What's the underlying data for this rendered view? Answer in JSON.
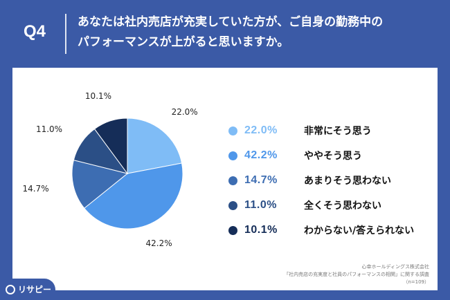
{
  "header": {
    "question_no": "Q4",
    "question_line1": "あなたは社内売店が充実していた方が、ご自身の勤務中の",
    "question_line2": "パフォーマンスが上がると思いますか。"
  },
  "colors": {
    "background": "#3b5aa6",
    "series": [
      "#7fbcf6",
      "#4f97ea",
      "#3d6db2",
      "#2b4f86",
      "#152d58"
    ]
  },
  "chart_data": {
    "type": "pie",
    "categories": [
      "非常にそう思う",
      "ややそう思う",
      "あまりそう思わない",
      "全くそう思わない",
      "わからない/答えられない"
    ],
    "values": [
      22.0,
      42.2,
      14.7,
      11.0,
      10.1
    ],
    "slice_labels": [
      "22.0%",
      "42.2%",
      "14.7%",
      "11.0%",
      "10.1%"
    ]
  },
  "legend": [
    {
      "pct": "22.0%",
      "label": "非常にそう思う"
    },
    {
      "pct": "42.2%",
      "label": "ややそう思う"
    },
    {
      "pct": "14.7%",
      "label": "あまりそう思わない"
    },
    {
      "pct": "11.0%",
      "label": "全くそう思わない"
    },
    {
      "pct": "10.1%",
      "label": "わからない/答えられない"
    }
  ],
  "source": {
    "line1": "心幸ホールディングス株式会社",
    "line2": "「社内売店の充実度と社員のパフォーマンスの相関」に関する調査",
    "line3": "（n=109）"
  },
  "logo": {
    "text": "リサピー",
    "icon": "search-icon"
  }
}
